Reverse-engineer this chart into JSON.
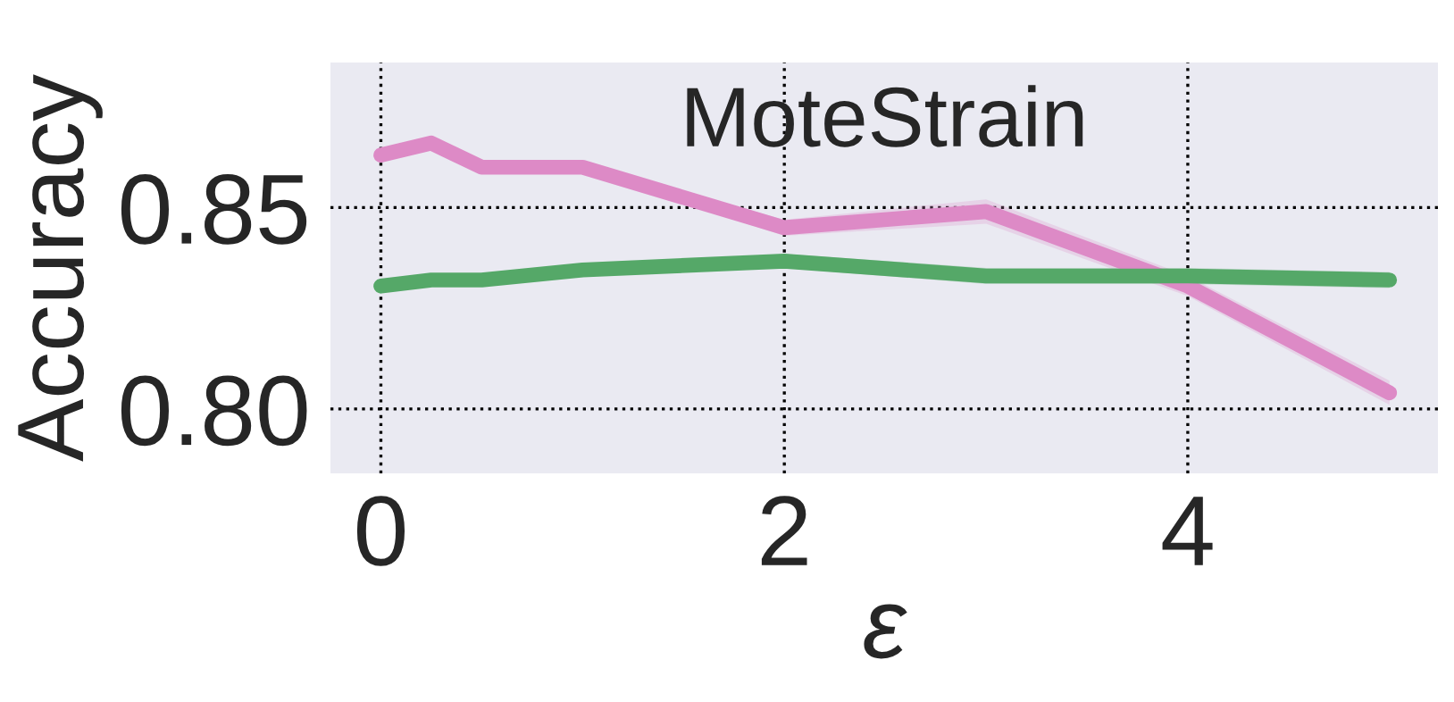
{
  "chart_data": {
    "type": "line",
    "title": "MoteStrain",
    "xlabel": "ε",
    "ylabel": "Accuracy",
    "xlim": [
      -0.25,
      5.24
    ],
    "ylim": [
      0.784,
      0.886
    ],
    "xticks": [
      0,
      2,
      4
    ],
    "yticks": [
      {
        "value": 0.8,
        "label": "0.80"
      },
      {
        "value": 0.85,
        "label": "0.85"
      }
    ],
    "grid": true,
    "legend": false,
    "series": [
      {
        "color": "#dd8ac6",
        "x": [
          0,
          0.25,
          0.5,
          1,
          2,
          3,
          4,
          5
        ],
        "values": [
          0.863,
          0.866,
          0.86,
          0.86,
          0.845,
          0.849,
          0.8305,
          0.804
        ],
        "lower": [
          0.862,
          0.865,
          0.859,
          0.859,
          0.843,
          0.846,
          0.828,
          0.801
        ],
        "upper": [
          0.864,
          0.867,
          0.861,
          0.861,
          0.847,
          0.852,
          0.833,
          0.807
        ]
      },
      {
        "color": "#55a868",
        "x": [
          0,
          0.25,
          0.5,
          1,
          2,
          3,
          4,
          5
        ],
        "values": [
          0.8305,
          0.832,
          0.832,
          0.8345,
          0.8367,
          0.833,
          0.833,
          0.832
        ],
        "lower": [
          0.8295,
          0.831,
          0.831,
          0.8335,
          0.835,
          0.831,
          0.831,
          0.83
        ],
        "upper": [
          0.8315,
          0.833,
          0.833,
          0.8355,
          0.8385,
          0.835,
          0.835,
          0.834
        ]
      }
    ]
  }
}
